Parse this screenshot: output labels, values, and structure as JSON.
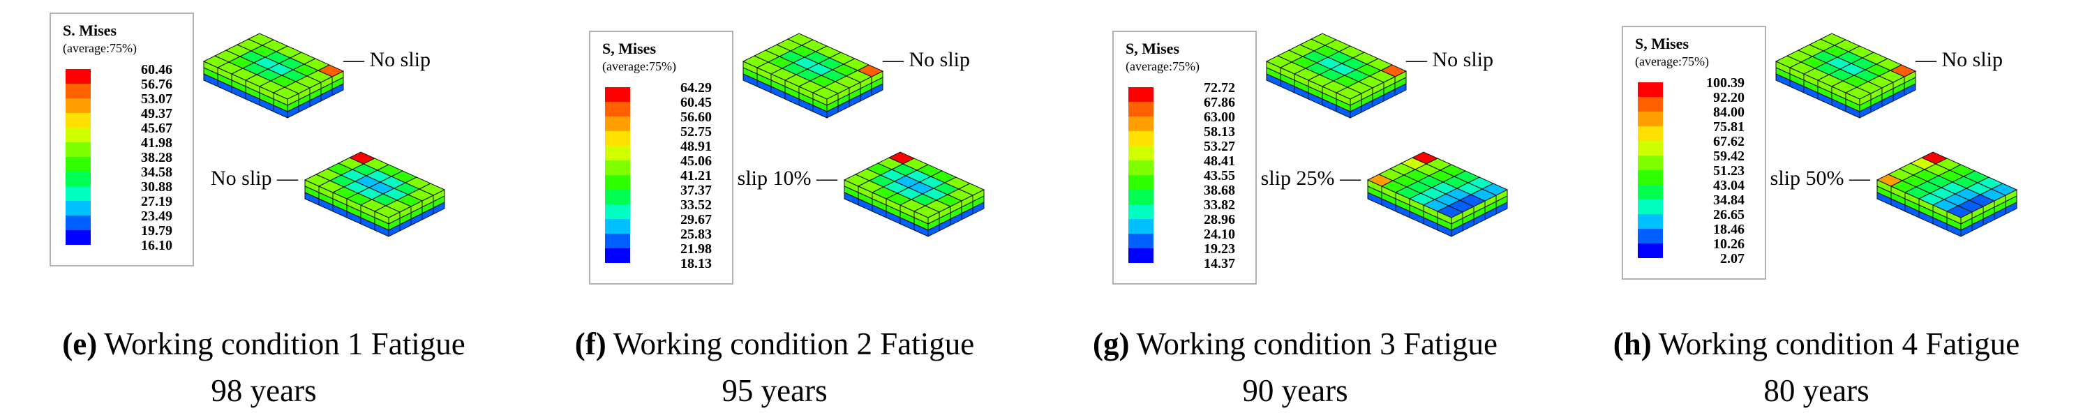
{
  "panels": [
    {
      "legend": {
        "title": "S. Mises",
        "subtitle": "(average:75%)",
        "values": [
          "60.46",
          "56.76",
          "53.07",
          "49.37",
          "45.67",
          "41.98",
          "38.28",
          "34.58",
          "30.88",
          "27.19",
          "23.49",
          "19.79",
          "16.10"
        ]
      },
      "top_label": "— No slip",
      "bottom_label": "No slip —",
      "caption": {
        "label": "(e)",
        "text": "Working condition 1 Fatigue",
        "years": "98 years"
      }
    },
    {
      "legend": {
        "title": "S, Mises",
        "subtitle": "(average:75%)",
        "values": [
          "64.29",
          "60.45",
          "56.60",
          "52.75",
          "48.91",
          "45.06",
          "41.21",
          "37.37",
          "33.52",
          "29.67",
          "25.83",
          "21.98",
          "18.13"
        ]
      },
      "top_label": "— No slip",
      "bottom_label": "slip 10% —",
      "caption": {
        "label": "(f)",
        "text": "Working condition 2 Fatigue",
        "years": "95 years"
      }
    },
    {
      "legend": {
        "title": "S, Mises",
        "subtitle": "(average:75%)",
        "values": [
          "72.72",
          "67.86",
          "63.00",
          "58.13",
          "53.27",
          "48.41",
          "43.55",
          "38.68",
          "33.82",
          "28.96",
          "24.10",
          "19.23",
          "14.37"
        ]
      },
      "top_label": "— No slip",
      "bottom_label": "slip 25% —",
      "caption": {
        "label": "(g)",
        "text": "Working condition 3 Fatigue",
        "years": "90 years"
      }
    },
    {
      "legend": {
        "title": "S, Mises",
        "subtitle": "(average:75%)",
        "values": [
          "100.39",
          "92.20",
          "84.00",
          "75.81",
          "67.62",
          "59.42",
          "51.23",
          "43.04",
          "34.84",
          "26.65",
          "18.46",
          "10.26",
          "2.07"
        ]
      },
      "top_label": "— No slip",
      "bottom_label": "slip 50% —",
      "caption": {
        "label": "(h)",
        "text": "Working condition 4 Fatigue",
        "years": "80 years"
      }
    }
  ]
}
